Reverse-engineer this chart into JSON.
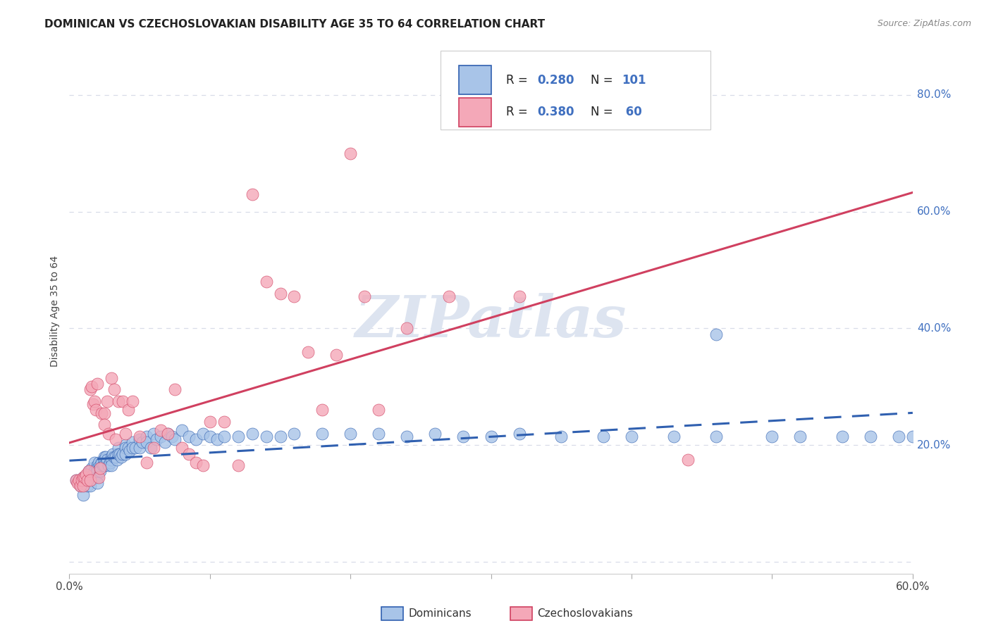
{
  "title": "DOMINICAN VS CZECHOSLOVAKIAN DISABILITY AGE 35 TO 64 CORRELATION CHART",
  "source": "Source: ZipAtlas.com",
  "ylabel": "Disability Age 35 to 64",
  "xmin": 0.0,
  "xmax": 0.6,
  "ymin": -0.02,
  "ymax": 0.88,
  "dominican_color": "#a8c4e8",
  "czechoslovakian_color": "#f4a8b8",
  "trendline_dom_color": "#3060b0",
  "trendline_czk_color": "#d04060",
  "dominican_x": [
    0.005,
    0.007,
    0.008,
    0.009,
    0.01,
    0.01,
    0.01,
    0.012,
    0.013,
    0.013,
    0.014,
    0.015,
    0.015,
    0.015,
    0.016,
    0.017,
    0.018,
    0.018,
    0.019,
    0.02,
    0.02,
    0.02,
    0.02,
    0.02,
    0.021,
    0.022,
    0.022,
    0.023,
    0.024,
    0.025,
    0.025,
    0.025,
    0.026,
    0.027,
    0.028,
    0.029,
    0.03,
    0.03,
    0.03,
    0.031,
    0.032,
    0.033,
    0.034,
    0.035,
    0.035,
    0.036,
    0.037,
    0.038,
    0.04,
    0.04,
    0.04,
    0.042,
    0.043,
    0.045,
    0.045,
    0.047,
    0.05,
    0.05,
    0.052,
    0.055,
    0.055,
    0.058,
    0.06,
    0.062,
    0.065,
    0.068,
    0.07,
    0.073,
    0.075,
    0.08,
    0.085,
    0.09,
    0.095,
    0.1,
    0.105,
    0.11,
    0.12,
    0.13,
    0.14,
    0.15,
    0.16,
    0.18,
    0.2,
    0.22,
    0.24,
    0.26,
    0.28,
    0.3,
    0.32,
    0.35,
    0.38,
    0.4,
    0.43,
    0.46,
    0.5,
    0.52,
    0.55,
    0.57,
    0.59,
    0.6,
    0.46
  ],
  "dominican_y": [
    0.14,
    0.135,
    0.13,
    0.14,
    0.145,
    0.13,
    0.115,
    0.14,
    0.15,
    0.13,
    0.155,
    0.155,
    0.145,
    0.13,
    0.16,
    0.15,
    0.17,
    0.155,
    0.145,
    0.165,
    0.16,
    0.155,
    0.145,
    0.135,
    0.17,
    0.165,
    0.155,
    0.17,
    0.165,
    0.18,
    0.175,
    0.165,
    0.18,
    0.175,
    0.165,
    0.17,
    0.18,
    0.175,
    0.165,
    0.185,
    0.18,
    0.18,
    0.175,
    0.195,
    0.185,
    0.185,
    0.18,
    0.185,
    0.2,
    0.195,
    0.185,
    0.195,
    0.19,
    0.205,
    0.195,
    0.195,
    0.21,
    0.195,
    0.205,
    0.215,
    0.205,
    0.195,
    0.22,
    0.21,
    0.215,
    0.205,
    0.22,
    0.215,
    0.21,
    0.225,
    0.215,
    0.21,
    0.22,
    0.215,
    0.21,
    0.215,
    0.215,
    0.22,
    0.215,
    0.215,
    0.22,
    0.22,
    0.22,
    0.22,
    0.215,
    0.22,
    0.215,
    0.215,
    0.22,
    0.215,
    0.215,
    0.215,
    0.215,
    0.215,
    0.215,
    0.215,
    0.215,
    0.215,
    0.215,
    0.215,
    0.39
  ],
  "czechoslovakian_x": [
    0.005,
    0.006,
    0.007,
    0.008,
    0.009,
    0.01,
    0.01,
    0.011,
    0.012,
    0.013,
    0.014,
    0.015,
    0.015,
    0.016,
    0.017,
    0.018,
    0.019,
    0.02,
    0.021,
    0.022,
    0.023,
    0.025,
    0.025,
    0.027,
    0.028,
    0.03,
    0.032,
    0.033,
    0.035,
    0.038,
    0.04,
    0.042,
    0.045,
    0.05,
    0.055,
    0.06,
    0.065,
    0.07,
    0.075,
    0.08,
    0.085,
    0.09,
    0.095,
    0.1,
    0.11,
    0.12,
    0.13,
    0.14,
    0.15,
    0.16,
    0.17,
    0.18,
    0.19,
    0.2,
    0.21,
    0.22,
    0.24,
    0.27,
    0.32,
    0.44
  ],
  "czechoslovakian_y": [
    0.14,
    0.135,
    0.14,
    0.13,
    0.14,
    0.145,
    0.13,
    0.145,
    0.15,
    0.14,
    0.155,
    0.295,
    0.14,
    0.3,
    0.27,
    0.275,
    0.26,
    0.305,
    0.145,
    0.16,
    0.255,
    0.255,
    0.235,
    0.275,
    0.22,
    0.315,
    0.295,
    0.21,
    0.275,
    0.275,
    0.22,
    0.26,
    0.275,
    0.215,
    0.17,
    0.195,
    0.225,
    0.22,
    0.295,
    0.195,
    0.185,
    0.17,
    0.165,
    0.24,
    0.24,
    0.165,
    0.63,
    0.48,
    0.46,
    0.455,
    0.36,
    0.26,
    0.355,
    0.7,
    0.455,
    0.26,
    0.4,
    0.455,
    0.455,
    0.175
  ],
  "legend_text_color": "#4070c0",
  "grid_color": "#d8dce8",
  "background_color": "#ffffff",
  "watermark": "ZIPatlas",
  "watermark_color": "#dde4f0",
  "watermark_fontsize": 60
}
